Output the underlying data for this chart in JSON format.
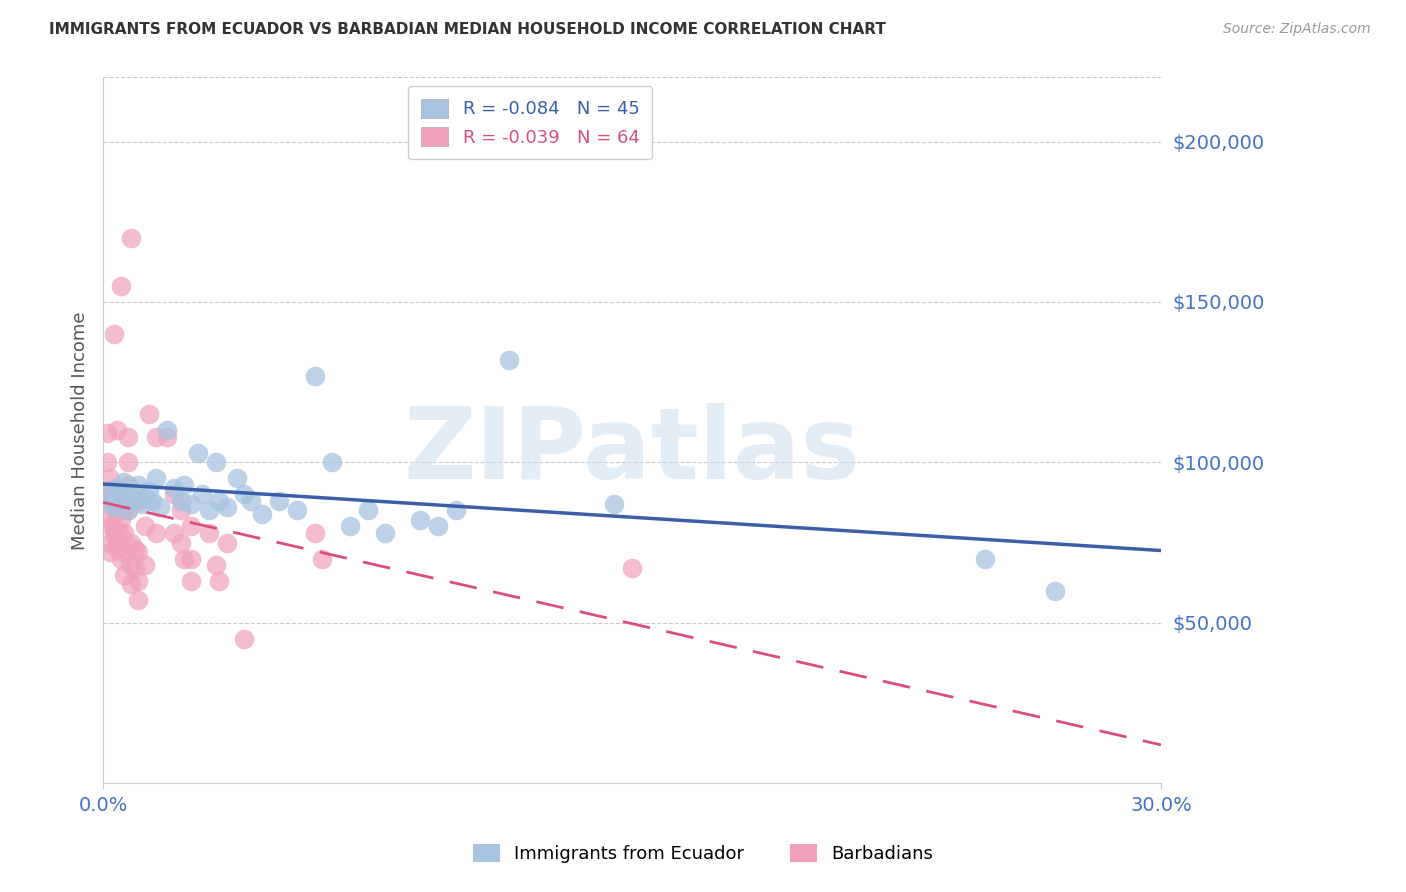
{
  "title": "IMMIGRANTS FROM ECUADOR VS BARBADIAN MEDIAN HOUSEHOLD INCOME CORRELATION CHART",
  "source": "Source: ZipAtlas.com",
  "ylabel": "Median Household Income",
  "ytick_values": [
    50000,
    100000,
    150000,
    200000
  ],
  "ylim": [
    0,
    220000
  ],
  "xlim": [
    0.0,
    0.3
  ],
  "watermark": "ZIPatlas",
  "blue_color": "#3a5fa8",
  "pink_color": "#d94f7a",
  "dot_blue": "#a8c4e0",
  "dot_pink": "#f0a0bc",
  "title_color": "#333333",
  "source_color": "#999999",
  "axis_label_color": "#4472c4",
  "legend_blue_label": "R = -0.084   N = 45",
  "legend_pink_label": "R = -0.039   N = 64",
  "bottom_legend_blue": "Immigrants from Ecuador",
  "bottom_legend_pink": "Barbadians",
  "ecuador_data": [
    [
      0.001,
      88000
    ],
    [
      0.002,
      91000
    ],
    [
      0.003,
      86000
    ],
    [
      0.004,
      92000
    ],
    [
      0.005,
      89000
    ],
    [
      0.006,
      94000
    ],
    [
      0.007,
      85000
    ],
    [
      0.008,
      90000
    ],
    [
      0.009,
      88000
    ],
    [
      0.01,
      93000
    ],
    [
      0.011,
      87000
    ],
    [
      0.012,
      89000
    ],
    [
      0.013,
      91000
    ],
    [
      0.014,
      88000
    ],
    [
      0.015,
      95000
    ],
    [
      0.016,
      86000
    ],
    [
      0.018,
      110000
    ],
    [
      0.02,
      92000
    ],
    [
      0.022,
      88000
    ],
    [
      0.023,
      93000
    ],
    [
      0.025,
      87000
    ],
    [
      0.027,
      103000
    ],
    [
      0.028,
      90000
    ],
    [
      0.03,
      85000
    ],
    [
      0.032,
      100000
    ],
    [
      0.033,
      88000
    ],
    [
      0.035,
      86000
    ],
    [
      0.038,
      95000
    ],
    [
      0.04,
      90000
    ],
    [
      0.042,
      88000
    ],
    [
      0.045,
      84000
    ],
    [
      0.05,
      88000
    ],
    [
      0.055,
      85000
    ],
    [
      0.06,
      127000
    ],
    [
      0.065,
      100000
    ],
    [
      0.07,
      80000
    ],
    [
      0.075,
      85000
    ],
    [
      0.08,
      78000
    ],
    [
      0.09,
      82000
    ],
    [
      0.095,
      80000
    ],
    [
      0.1,
      85000
    ],
    [
      0.115,
      132000
    ],
    [
      0.145,
      87000
    ],
    [
      0.25,
      70000
    ],
    [
      0.27,
      60000
    ]
  ],
  "barbadian_data": [
    [
      0.001,
      90000
    ],
    [
      0.001,
      83000
    ],
    [
      0.001,
      109000
    ],
    [
      0.001,
      100000
    ],
    [
      0.002,
      80000
    ],
    [
      0.002,
      75000
    ],
    [
      0.002,
      95000
    ],
    [
      0.002,
      88000
    ],
    [
      0.002,
      72000
    ],
    [
      0.003,
      91000
    ],
    [
      0.003,
      85000
    ],
    [
      0.003,
      78000
    ],
    [
      0.003,
      80000
    ],
    [
      0.003,
      140000
    ],
    [
      0.004,
      92000
    ],
    [
      0.004,
      86000
    ],
    [
      0.004,
      75000
    ],
    [
      0.004,
      73000
    ],
    [
      0.004,
      110000
    ],
    [
      0.005,
      88000
    ],
    [
      0.005,
      82000
    ],
    [
      0.005,
      77000
    ],
    [
      0.005,
      70000
    ],
    [
      0.005,
      155000
    ],
    [
      0.006,
      85000
    ],
    [
      0.006,
      78000
    ],
    [
      0.006,
      72000
    ],
    [
      0.006,
      65000
    ],
    [
      0.007,
      108000
    ],
    [
      0.007,
      100000
    ],
    [
      0.007,
      93000
    ],
    [
      0.007,
      85000
    ],
    [
      0.008,
      75000
    ],
    [
      0.008,
      68000
    ],
    [
      0.008,
      62000
    ],
    [
      0.008,
      170000
    ],
    [
      0.009,
      73000
    ],
    [
      0.009,
      67000
    ],
    [
      0.01,
      88000
    ],
    [
      0.01,
      72000
    ],
    [
      0.01,
      63000
    ],
    [
      0.01,
      57000
    ],
    [
      0.012,
      80000
    ],
    [
      0.012,
      68000
    ],
    [
      0.013,
      115000
    ],
    [
      0.015,
      108000
    ],
    [
      0.015,
      78000
    ],
    [
      0.018,
      108000
    ],
    [
      0.02,
      90000
    ],
    [
      0.02,
      78000
    ],
    [
      0.022,
      85000
    ],
    [
      0.022,
      75000
    ],
    [
      0.023,
      70000
    ],
    [
      0.025,
      80000
    ],
    [
      0.025,
      70000
    ],
    [
      0.025,
      63000
    ],
    [
      0.03,
      78000
    ],
    [
      0.032,
      68000
    ],
    [
      0.033,
      63000
    ],
    [
      0.035,
      75000
    ],
    [
      0.04,
      45000
    ],
    [
      0.06,
      78000
    ],
    [
      0.062,
      70000
    ],
    [
      0.15,
      67000
    ]
  ]
}
